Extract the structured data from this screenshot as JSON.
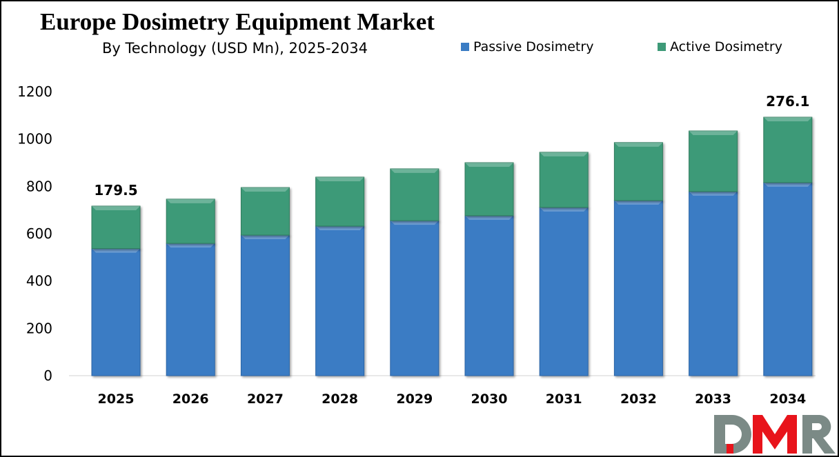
{
  "chart_data": {
    "type": "bar",
    "stacked": true,
    "title": "Europe Dosimetry Equipment Market",
    "subtitle": "By Technology (USD Mn), 2025-2034",
    "categories": [
      "2025",
      "2026",
      "2027",
      "2028",
      "2029",
      "2030",
      "2031",
      "2032",
      "2033",
      "2034"
    ],
    "series": [
      {
        "name": "Passive Dosimetry",
        "color": "#3a7cc4",
        "values": [
          537,
          559,
          594,
          632,
          655,
          676,
          711,
          740,
          778,
          816
        ]
      },
      {
        "name": "Active Dosimetry",
        "color": "#3e9a78",
        "values": [
          179.5,
          187,
          201,
          207,
          219,
          224,
          233,
          245,
          256,
          276.1
        ]
      }
    ],
    "annotations": [
      {
        "category": "2025",
        "text": "179.5"
      },
      {
        "category": "2034",
        "text": "276.1"
      }
    ],
    "ylim": [
      0,
      1200
    ],
    "yticks": [
      0,
      200,
      400,
      600,
      800,
      1000,
      1200
    ],
    "grid": false,
    "legend": "top-right",
    "xlabel": "",
    "ylabel": ""
  },
  "logo": {
    "text": "DMR"
  }
}
